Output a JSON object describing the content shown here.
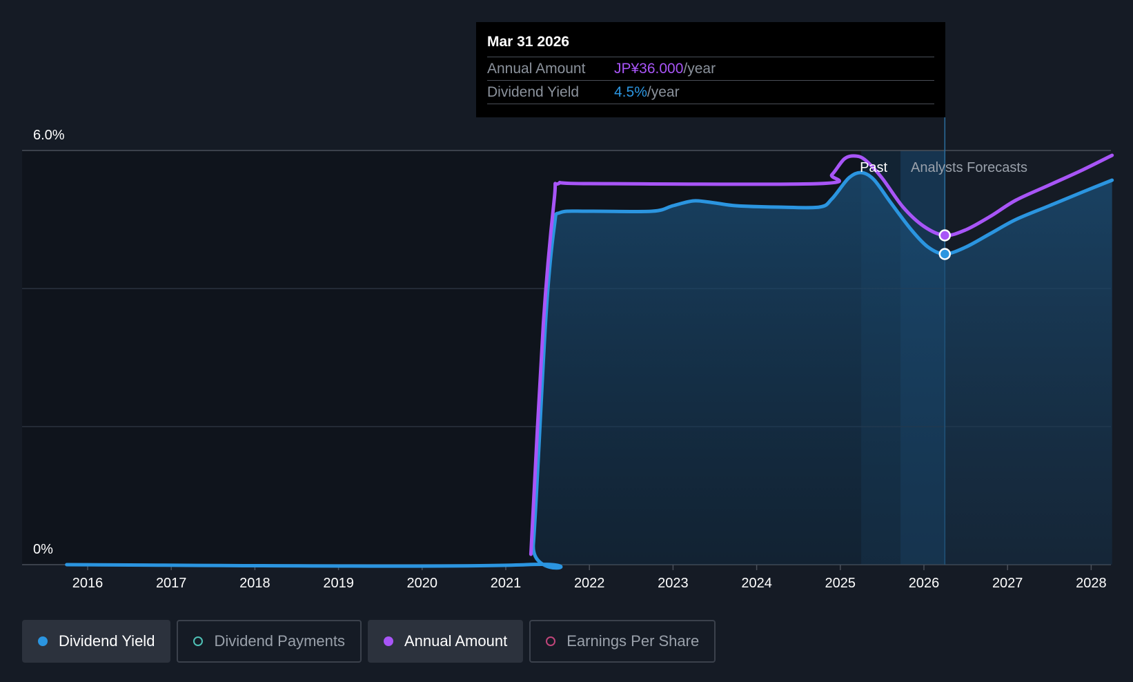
{
  "chart_data": {
    "type": "line",
    "title": "",
    "xlabel": "",
    "ylabel": "",
    "ylim": [
      0,
      6.0
    ],
    "y_ticks": [
      "0%",
      "6.0%"
    ],
    "x_ticks": [
      "2016",
      "2017",
      "2018",
      "2019",
      "2020",
      "2021",
      "2022",
      "2023",
      "2024",
      "2025",
      "2026",
      "2027",
      "2028"
    ],
    "series": [
      {
        "name": "Dividend Yield",
        "color": "#2b95e0",
        "filled": true,
        "points": [
          [
            2015.75,
            0.0
          ],
          [
            2021.25,
            0.0
          ],
          [
            2021.33,
            0.3
          ],
          [
            2021.48,
            3.6
          ],
          [
            2021.58,
            4.9
          ],
          [
            2021.65,
            5.1
          ],
          [
            2022.0,
            5.12
          ],
          [
            2022.75,
            5.12
          ],
          [
            2023.0,
            5.2
          ],
          [
            2023.25,
            5.27
          ],
          [
            2023.5,
            5.24
          ],
          [
            2023.75,
            5.2
          ],
          [
            2024.25,
            5.18
          ],
          [
            2024.75,
            5.18
          ],
          [
            2024.9,
            5.3
          ],
          [
            2025.1,
            5.6
          ],
          [
            2025.25,
            5.68
          ],
          [
            2025.4,
            5.58
          ],
          [
            2025.6,
            5.25
          ],
          [
            2025.85,
            4.85
          ],
          [
            2026.05,
            4.6
          ],
          [
            2026.25,
            4.5
          ],
          [
            2026.5,
            4.6
          ],
          [
            2026.8,
            4.8
          ],
          [
            2027.1,
            5.0
          ],
          [
            2027.5,
            5.2
          ],
          [
            2027.9,
            5.4
          ],
          [
            2028.25,
            5.57
          ]
        ]
      },
      {
        "name": "Annual Amount",
        "color": "#a855f7",
        "filled": false,
        "points": [
          [
            2021.3,
            0.15
          ],
          [
            2021.45,
            3.5
          ],
          [
            2021.58,
            5.3
          ],
          [
            2021.63,
            5.52
          ],
          [
            2022.0,
            5.52
          ],
          [
            2024.75,
            5.52
          ],
          [
            2024.9,
            5.65
          ],
          [
            2025.05,
            5.88
          ],
          [
            2025.18,
            5.92
          ],
          [
            2025.3,
            5.86
          ],
          [
            2025.5,
            5.6
          ],
          [
            2025.75,
            5.18
          ],
          [
            2026.0,
            4.9
          ],
          [
            2026.25,
            4.77
          ],
          [
            2026.5,
            4.85
          ],
          [
            2026.8,
            5.05
          ],
          [
            2027.1,
            5.28
          ],
          [
            2027.5,
            5.5
          ],
          [
            2027.9,
            5.72
          ],
          [
            2028.25,
            5.93
          ]
        ]
      }
    ],
    "highlight_x": 2026.25,
    "past_start_x": 2025.25,
    "forecast_start_x": 2025.72,
    "regions": {
      "past_label": "Past",
      "forecast_label": "Analysts Forecasts"
    }
  },
  "tooltip": {
    "date": "Mar 31 2026",
    "rows": [
      {
        "label": "Annual Amount",
        "value": "JP¥36.000",
        "unit": "/year"
      },
      {
        "label": "Dividend Yield",
        "value": "4.5%",
        "unit": "/year"
      }
    ]
  },
  "legend": [
    {
      "label": "Dividend Yield",
      "active": true,
      "color": "#2b95e0",
      "dot": "filled"
    },
    {
      "label": "Dividend Payments",
      "active": false,
      "color": "#4fc1b6",
      "dot": "hollow"
    },
    {
      "label": "Annual Amount",
      "active": true,
      "color": "#a855f7",
      "dot": "filled"
    },
    {
      "label": "Earnings Per Share",
      "active": false,
      "color": "#c0457a",
      "dot": "hollow"
    }
  ]
}
